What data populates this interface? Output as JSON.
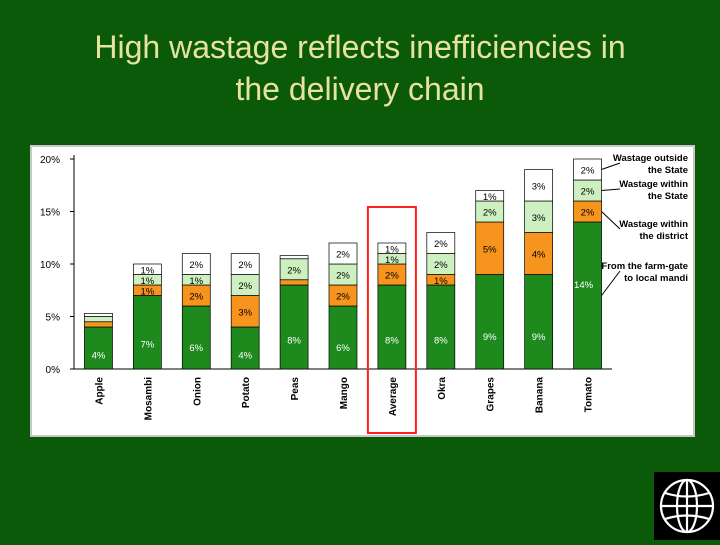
{
  "slide": {
    "title_line1": "High wastage reflects inefficiencies in",
    "title_line2": "the delivery chain"
  },
  "colors": {
    "background": "#0a5a0a",
    "title": "#e8e2a0",
    "farm_gate": "#1e8a1e",
    "within_district": "#f7941d",
    "within_state": "#cdf0c0",
    "outside_state": "#ffffff",
    "highlight": "#ff2020"
  },
  "chart_data": {
    "type": "bar",
    "stacked": true,
    "categories": [
      "Apple",
      "Mosambi",
      "Onion",
      "Potato",
      "Peas",
      "Mango",
      "Average",
      "Okra",
      "Grapes",
      "Banana",
      "Tomato"
    ],
    "series": [
      {
        "name": "From the farm-gate to local mandi",
        "values": [
          4,
          7,
          6,
          4,
          8,
          6,
          8,
          8,
          9,
          9,
          14
        ]
      },
      {
        "name": "Wastage within the district",
        "values": [
          0.5,
          1,
          2,
          3,
          0.5,
          2,
          2,
          1,
          5,
          4,
          2
        ]
      },
      {
        "name": "Wastage within the State",
        "values": [
          0.5,
          1,
          1,
          2,
          2,
          2,
          1,
          2,
          2,
          3,
          2
        ]
      },
      {
        "name": "Wastage outside the State",
        "values": [
          0.3,
          1,
          2,
          2,
          0.3,
          2,
          1,
          2,
          1,
          3,
          2
        ]
      }
    ],
    "labels": [
      [
        "4%",
        "",
        "",
        ""
      ],
      [
        "7%",
        "1%",
        "1%",
        "1%"
      ],
      [
        "6%",
        "2%",
        "1%",
        "2%"
      ],
      [
        "4%",
        "3%",
        "2%",
        "2%"
      ],
      [
        "8%",
        "",
        "2%",
        ""
      ],
      [
        "6%",
        "2%",
        "2%",
        "2%"
      ],
      [
        "8%",
        "2%",
        "1%",
        "1%"
      ],
      [
        "8%",
        "1%",
        "2%",
        "2%"
      ],
      [
        "9%",
        "5%",
        "2%",
        "1%"
      ],
      [
        "9%",
        "4%",
        "3%",
        "3%"
      ],
      [
        "14%",
        "2%",
        "2%",
        "2%"
      ]
    ],
    "y_ticks": [
      "0%",
      "5%",
      "10%",
      "15%",
      "20%"
    ],
    "ylim": [
      0,
      20
    ],
    "highlight_category": "Average",
    "legend": [
      {
        "text": "Wastage outside the State",
        "series": 3
      },
      {
        "text": "Wastage within the State",
        "series": 2
      },
      {
        "text": "Wastage within the district",
        "series": 1
      },
      {
        "text": "From the farm-gate to local mandi",
        "series": 0
      }
    ],
    "legend_position": "right"
  }
}
